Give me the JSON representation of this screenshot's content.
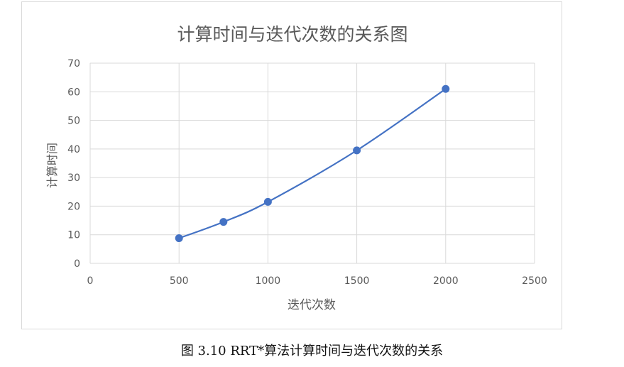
{
  "chart_data": {
    "type": "line",
    "title": "计算时间与迭代次数的关系图",
    "xlabel": "迭代次数",
    "ylabel": "计算时间",
    "x": [
      500,
      750,
      1000,
      1500,
      2000
    ],
    "series": [
      {
        "values": [
          8.8,
          14.5,
          21.5,
          39.5,
          61
        ]
      }
    ],
    "xlim": [
      0,
      2500
    ],
    "ylim": [
      0,
      70
    ],
    "xticks": [
      0,
      500,
      1000,
      1500,
      2000,
      2500
    ],
    "yticks": [
      0,
      10,
      20,
      30,
      40,
      50,
      60,
      70
    ],
    "grid": true,
    "smooth": true,
    "legend": "none",
    "colors": {
      "line": "#4472c4",
      "grid": "#d9d9d9",
      "text": "#595959"
    }
  },
  "caption": "图 3.10 RRT*算法计算时间与迭代次数的关系"
}
